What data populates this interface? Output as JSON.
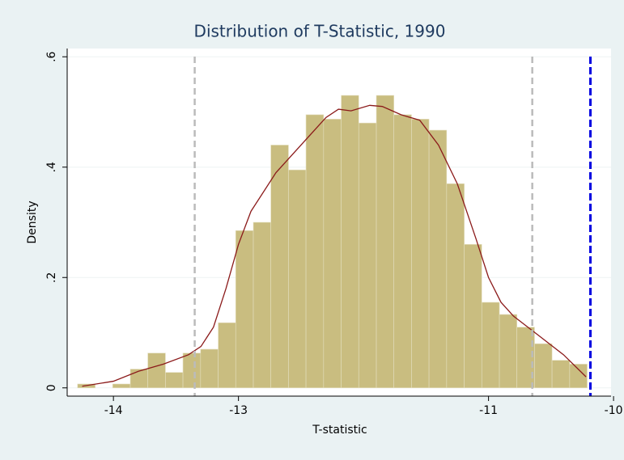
{
  "chart_data": {
    "type": "histogram",
    "title": "Distribution of T-Statistic, 1990",
    "x_label": "T-statistic",
    "y_label": "Density",
    "bins": [
      -14.287,
      -14.146,
      -14.006,
      -13.865,
      -13.725,
      -13.584,
      -13.444,
      -13.303,
      -13.162,
      -13.022,
      -12.881,
      -12.741,
      -12.6,
      -12.46,
      -12.319,
      -12.178,
      -12.038,
      -11.897,
      -11.757,
      -11.616,
      -11.476,
      -11.335,
      -11.194,
      -11.054,
      -10.913,
      -10.773,
      -10.632,
      -10.492,
      -10.351,
      -10.211
    ],
    "values": [
      0.007,
      0,
      0.007,
      0.034,
      0.063,
      0.028,
      0.063,
      0.07,
      0.118,
      0.285,
      0.3,
      0.44,
      0.395,
      0.495,
      0.487,
      0.53,
      0.48,
      0.53,
      0.495,
      0.487,
      0.467,
      0.37,
      0.26,
      0.155,
      0.133,
      0.11,
      0.08,
      0.05,
      0.043
    ],
    "color": "#c9bd80",
    "density_line": {
      "color": "#8b1a1a",
      "x": [
        -14.25,
        -14.0,
        -13.8,
        -13.6,
        -13.4,
        -13.3,
        -13.2,
        -13.1,
        -13.0,
        -12.9,
        -12.7,
        -12.5,
        -12.3,
        -12.2,
        -12.1,
        -11.95,
        -11.85,
        -11.7,
        -11.55,
        -11.4,
        -11.25,
        -11.1,
        -11.0,
        -10.9,
        -10.8,
        -10.6,
        -10.4,
        -10.22
      ],
      "values": [
        0.003,
        0.012,
        0.03,
        0.043,
        0.06,
        0.075,
        0.11,
        0.18,
        0.26,
        0.32,
        0.39,
        0.44,
        0.49,
        0.505,
        0.502,
        0.512,
        0.51,
        0.495,
        0.485,
        0.44,
        0.37,
        0.27,
        0.2,
        0.155,
        0.13,
        0.095,
        0.06,
        0.02
      ]
    },
    "reference_lines": [
      {
        "x": -13.35,
        "color": "#bbbbbb"
      },
      {
        "x": -10.65,
        "color": "#bbbbbb"
      },
      {
        "x": -10.185,
        "color": "#0000e0"
      }
    ],
    "xlim": [
      -14.37,
      -10.02
    ],
    "xticks": [
      -14,
      -13,
      -11,
      -10
    ],
    "ylim": [
      -0.015,
      0.615
    ],
    "yticks": [
      0,
      {
        "value": 0.2,
        "label": ".2"
      },
      {
        "value": 0.4,
        "label": ".4"
      },
      {
        "value": 0.6,
        "label": ".6"
      }
    ],
    "grid": true
  }
}
